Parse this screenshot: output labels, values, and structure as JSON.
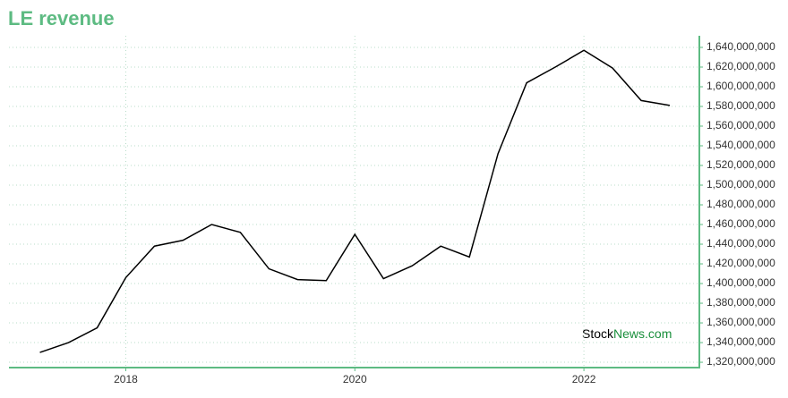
{
  "chart_data": {
    "type": "line",
    "title": "LE revenue",
    "x": [
      2017.25,
      2017.5,
      2017.75,
      2018,
      2018.25,
      2018.5,
      2018.75,
      2019,
      2019.25,
      2019.5,
      2019.75,
      2020,
      2020.25,
      2020.5,
      2020.75,
      2021,
      2021.25,
      2021.5,
      2021.75,
      2022,
      2022.25,
      2022.5,
      2022.75
    ],
    "series": [
      {
        "color": "#000000",
        "values": [
          1330000000,
          1340000000,
          1355000000,
          1406000000,
          1438000000,
          1444000000,
          1460000000,
          1452000000,
          1415000000,
          1404000000,
          1403000000,
          1450000000,
          1405000000,
          1418000000,
          1438000000,
          1427000000,
          1532000000,
          1604000000,
          1620000000,
          1637000000,
          1619000000,
          1586000000,
          1581000000
        ]
      }
    ],
    "xlim": [
      2016.98,
      2023
    ],
    "xticks": [
      2018,
      2020,
      2022
    ],
    "ylim": [
      1315500000,
      1651800000
    ],
    "yticks": [
      {
        "value": 1320000000,
        "label": "1,320,000,000"
      },
      {
        "value": 1340000000,
        "label": "1,340,000,000"
      },
      {
        "value": 1360000000,
        "label": "1,360,000,000"
      },
      {
        "value": 1380000000,
        "label": "1,380,000,000"
      },
      {
        "value": 1400000000,
        "label": "1,400,000,000"
      },
      {
        "value": 1420000000,
        "label": "1,420,000,000"
      },
      {
        "value": 1440000000,
        "label": "1,440,000,000"
      },
      {
        "value": 1460000000,
        "label": "1,460,000,000"
      },
      {
        "value": 1480000000,
        "label": "1,480,000,000"
      },
      {
        "value": 1500000000,
        "label": "1,500,000,000"
      },
      {
        "value": 1520000000,
        "label": "1,520,000,000"
      },
      {
        "value": 1540000000,
        "label": "1,540,000,000"
      },
      {
        "value": 1560000000,
        "label": "1,560,000,000"
      },
      {
        "value": 1580000000,
        "label": "1,580,000,000"
      },
      {
        "value": 1600000000,
        "label": "1,600,000,000"
      },
      {
        "value": 1620000000,
        "label": "1,620,000,000"
      },
      {
        "value": 1640000000,
        "label": "1,640,000,000"
      }
    ],
    "grid": true,
    "axis_color": "#5dbb82",
    "watermark": [
      "Stock",
      "News.com"
    ]
  }
}
